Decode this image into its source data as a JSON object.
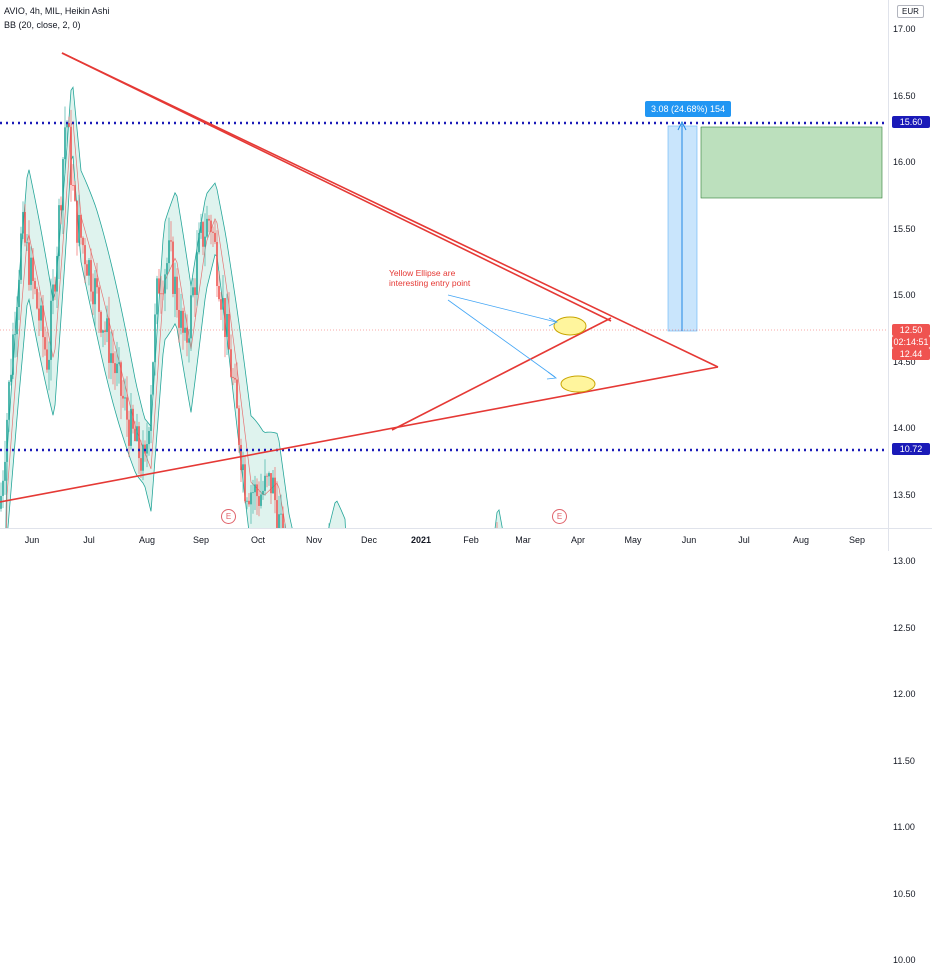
{
  "legend": {
    "symbol_line": "AVIO, 4h, MIL, Heikin Ashi",
    "indicator_line": "BB (20, close, 2, 0)"
  },
  "currency": "EUR",
  "y_axis_ticks": [
    "17.00",
    "16.50",
    "16.00",
    "15.50",
    "15.00",
    "14.50",
    "14.00",
    "13.50",
    "13.00",
    "12.50",
    "12.00",
    "11.50",
    "11.00",
    "10.50",
    "10.00"
  ],
  "x_axis_ticks": [
    "Jun",
    "Jul",
    "Aug",
    "Sep",
    "Oct",
    "Nov",
    "Dec",
    "2021",
    "Feb",
    "Mar",
    "Apr",
    "May",
    "Jun",
    "Jul",
    "Aug",
    "Sep"
  ],
  "price_labels": {
    "target": "15.60",
    "current": "12.50",
    "countdown": "02:14:51",
    "other": "12.44",
    "support": "10.72"
  },
  "measure_label": "3.08 (24.68%) 154",
  "annotation": {
    "line1": "Yellow Ellipse are",
    "line2": "interesting entry point"
  },
  "event_marker": "E",
  "colors": {
    "trendline": "#e53935",
    "dotted_line": "#1a1ab8",
    "band_fill": "#dff3ee",
    "band_line": "#26a69a",
    "candle_up": "#26a69a",
    "candle_down": "#ef5350",
    "target_zone": "#a5d6a7",
    "measure_zone": "#bbdefb",
    "ellipse": "#fff59d",
    "current_tag": "#ef5350",
    "dotted_tag": "#1a1ab8"
  }
}
